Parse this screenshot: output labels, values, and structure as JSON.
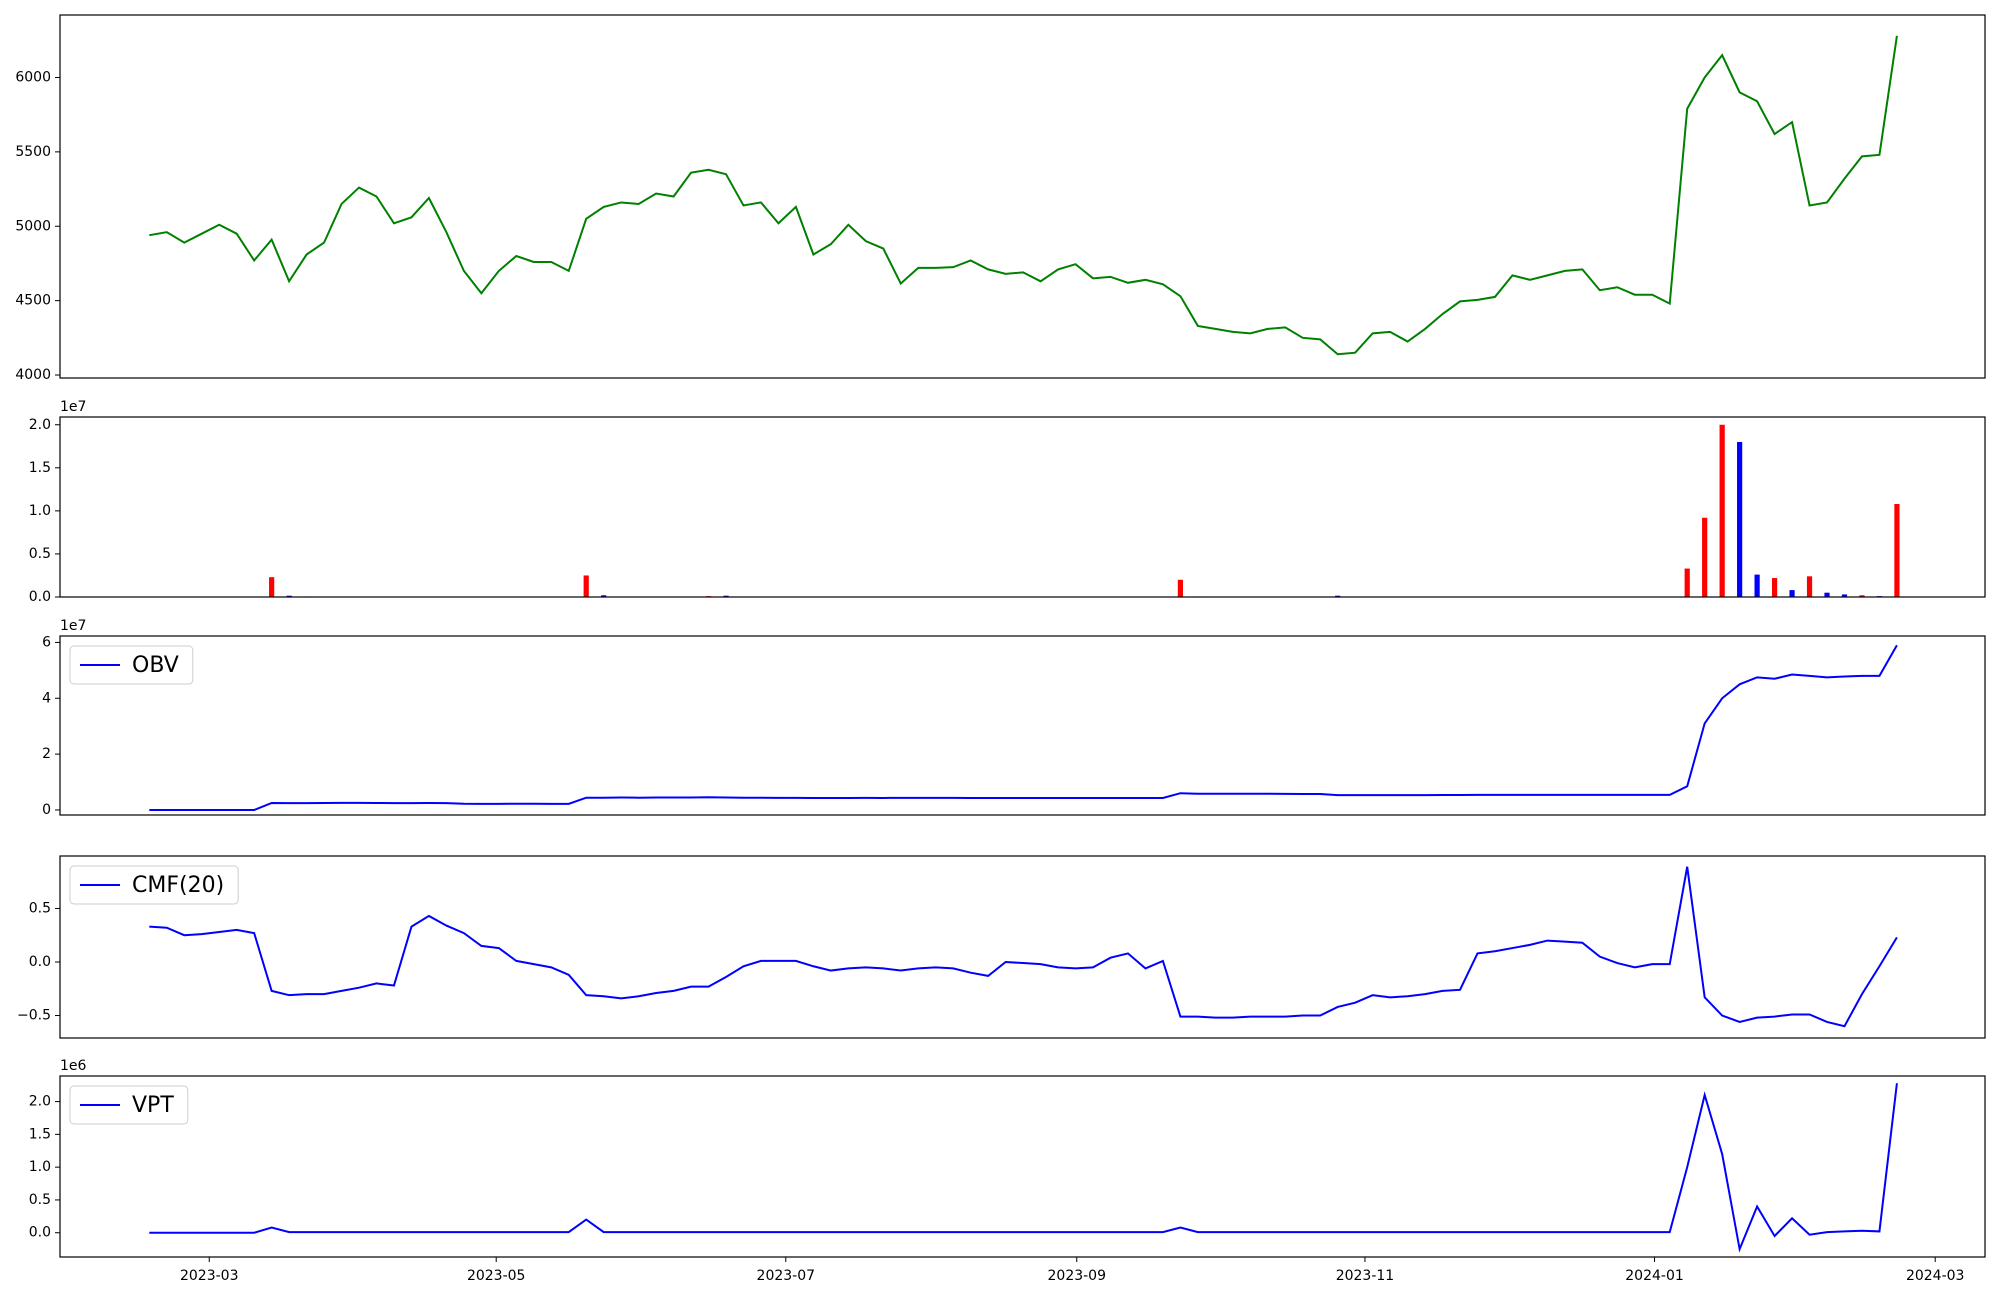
{
  "chart_data": [
    {
      "type": "line",
      "color": "#008000",
      "xlim": [
        -5.11,
        105.04
      ],
      "ylim": [
        3980,
        6420
      ],
      "yticks": [
        4000,
        4500,
        5000,
        5500,
        6000
      ],
      "values": [
        4940,
        4960,
        4890,
        4950,
        5010,
        4950,
        4770,
        4910,
        4630,
        4810,
        4890,
        5150,
        5260,
        5200,
        5020,
        5060,
        5190,
        4960,
        4700,
        4550,
        4700,
        4800,
        4760,
        4760,
        4700,
        5050,
        5130,
        5160,
        5150,
        5220,
        5200,
        5360,
        5380,
        5350,
        5140,
        5160,
        5020,
        5130,
        4810,
        4880,
        5010,
        4900,
        4850,
        4615,
        4720,
        4720,
        4725,
        4770,
        4710,
        4680,
        4690,
        4630,
        4710,
        4745,
        4650,
        4660,
        4620,
        4640,
        4610,
        4530,
        4330,
        4310,
        4290,
        4280,
        4310,
        4320,
        4250,
        4240,
        4140,
        4150,
        4280,
        4290,
        4225,
        4310,
        4410,
        4495,
        4505,
        4525,
        4670,
        4640,
        4670,
        4700,
        4710,
        4570,
        4590,
        4540,
        4540,
        4480,
        5790,
        6000,
        6150,
        5900,
        5840,
        5620,
        5700,
        5140,
        5160,
        5320,
        5470,
        5480,
        6280
      ]
    },
    {
      "type": "bar",
      "offset_label": "1e7",
      "xlim": [
        -5.11,
        105.04
      ],
      "ylim": [
        0,
        20900000
      ],
      "yticks": [
        {
          "value": 0,
          "label": "0.0"
        },
        {
          "value": 5000000,
          "label": "0.5"
        },
        {
          "value": 10000000,
          "label": "1.0"
        },
        {
          "value": 15000000,
          "label": "1.5"
        },
        {
          "value": 20000000,
          "label": "2.0"
        }
      ],
      "values": [
        0,
        0,
        0,
        0,
        0,
        0,
        0,
        2300000,
        150000,
        60000,
        0,
        0,
        0,
        0,
        40000,
        0,
        0,
        0,
        0,
        0,
        50000,
        0,
        0,
        0,
        0,
        2500000,
        200000,
        0,
        0,
        0,
        0,
        0,
        100000,
        150000,
        0,
        0,
        0,
        0,
        0,
        0,
        0,
        0,
        0,
        0,
        0,
        0,
        0,
        0,
        0,
        0,
        0,
        0,
        0,
        0,
        0,
        0,
        0,
        0,
        0,
        2000000,
        60000,
        50000,
        0,
        0,
        0,
        0,
        0,
        0,
        150000,
        0,
        0,
        0,
        0,
        0,
        0,
        0,
        0,
        0,
        0,
        0,
        0,
        0,
        0,
        0,
        0,
        0,
        0,
        0,
        3300000,
        9200000,
        20000000,
        18000000,
        2600000,
        2200000,
        800000,
        2400000,
        500000,
        300000,
        200000,
        100000,
        10800000
      ],
      "colors": [
        "#0000ff",
        "#0000ff",
        "#0000ff",
        "#0000ff",
        "#0000ff",
        "#0000ff",
        "#0000ff",
        "#ff0000",
        "#0000ff",
        "#0000ff",
        "#0000ff",
        "#0000ff",
        "#0000ff",
        "#0000ff",
        "#0000ff",
        "#0000ff",
        "#0000ff",
        "#0000ff",
        "#0000ff",
        "#0000ff",
        "#0000ff",
        "#0000ff",
        "#0000ff",
        "#0000ff",
        "#0000ff",
        "#ff0000",
        "#0000ff",
        "#0000ff",
        "#0000ff",
        "#0000ff",
        "#0000ff",
        "#0000ff",
        "#ff0000",
        "#0000ff",
        "#0000ff",
        "#0000ff",
        "#0000ff",
        "#0000ff",
        "#0000ff",
        "#0000ff",
        "#0000ff",
        "#0000ff",
        "#0000ff",
        "#0000ff",
        "#0000ff",
        "#0000ff",
        "#0000ff",
        "#0000ff",
        "#0000ff",
        "#0000ff",
        "#0000ff",
        "#0000ff",
        "#0000ff",
        "#0000ff",
        "#0000ff",
        "#0000ff",
        "#0000ff",
        "#0000ff",
        "#0000ff",
        "#ff0000",
        "#0000ff",
        "#0000ff",
        "#0000ff",
        "#0000ff",
        "#0000ff",
        "#0000ff",
        "#0000ff",
        "#0000ff",
        "#0000ff",
        "#0000ff",
        "#0000ff",
        "#0000ff",
        "#0000ff",
        "#0000ff",
        "#0000ff",
        "#0000ff",
        "#0000ff",
        "#0000ff",
        "#0000ff",
        "#0000ff",
        "#0000ff",
        "#0000ff",
        "#0000ff",
        "#0000ff",
        "#0000ff",
        "#0000ff",
        "#0000ff",
        "#0000ff",
        "#ff0000",
        "#ff0000",
        "#ff0000",
        "#0000ff",
        "#0000ff",
        "#ff0000",
        "#0000ff",
        "#ff0000",
        "#0000ff",
        "#0000ff",
        "#ff0000",
        "#0000ff",
        "#ff0000"
      ]
    },
    {
      "type": "line",
      "offset_label": "1e7",
      "xlim": [
        -5.11,
        105.04
      ],
      "ylim": [
        -1800000,
        62300000
      ],
      "yticks": [
        {
          "value": 0,
          "label": "0"
        },
        {
          "value": 20000000,
          "label": "2"
        },
        {
          "value": 40000000,
          "label": "4"
        },
        {
          "value": 60000000,
          "label": "6"
        }
      ],
      "series": [
        {
          "name": "OBV",
          "color": "#0000ff",
          "values": [
            0,
            0,
            0,
            0,
            0,
            0,
            0,
            2500000,
            2450000,
            2450000,
            2500000,
            2550000,
            2550000,
            2500000,
            2450000,
            2450000,
            2500000,
            2450000,
            2250000,
            2200000,
            2200000,
            2250000,
            2250000,
            2200000,
            2200000,
            4400000,
            4400000,
            4450000,
            4400000,
            4450000,
            4450000,
            4450000,
            4550000,
            4450000,
            4400000,
            4400000,
            4350000,
            4350000,
            4300000,
            4300000,
            4300000,
            4350000,
            4300000,
            4350000,
            4350000,
            4350000,
            4350000,
            4300000,
            4300000,
            4300000,
            4300000,
            4300000,
            4300000,
            4300000,
            4300000,
            4300000,
            4300000,
            4300000,
            4300000,
            6000000,
            5800000,
            5800000,
            5800000,
            5800000,
            5800000,
            5750000,
            5700000,
            5700000,
            5300000,
            5300000,
            5300000,
            5300000,
            5300000,
            5300000,
            5350000,
            5350000,
            5400000,
            5400000,
            5400000,
            5400000,
            5400000,
            5400000,
            5400000,
            5400000,
            5400000,
            5400000,
            5400000,
            5400000,
            8500000,
            31000000,
            40000000,
            45000000,
            47500000,
            47000000,
            48500000,
            48000000,
            47500000,
            47800000,
            48000000,
            48000000,
            59000000
          ]
        }
      ]
    },
    {
      "type": "line",
      "xlim": [
        -5.11,
        105.04
      ],
      "ylim": [
        -0.71,
        0.99
      ],
      "yticks": [
        {
          "value": -0.5,
          "label": "−0.5"
        },
        {
          "value": 0,
          "label": "0.0"
        },
        0.5
      ],
      "series": [
        {
          "name": "CMF(20)",
          "color": "#0000ff",
          "values": [
            0.33,
            0.32,
            0.25,
            0.26,
            0.28,
            0.3,
            0.27,
            -0.27,
            -0.31,
            -0.3,
            -0.3,
            -0.27,
            -0.24,
            -0.2,
            -0.22,
            0.33,
            0.43,
            0.34,
            0.27,
            0.15,
            0.13,
            0.01,
            -0.02,
            -0.05,
            -0.12,
            -0.31,
            -0.32,
            -0.34,
            -0.32,
            -0.29,
            -0.27,
            -0.23,
            -0.23,
            -0.14,
            -0.04,
            0.01,
            0.01,
            0.01,
            -0.04,
            -0.08,
            -0.06,
            -0.05,
            -0.06,
            -0.08,
            -0.06,
            -0.05,
            -0.06,
            -0.1,
            -0.13,
            0.0,
            -0.01,
            -0.02,
            -0.05,
            -0.06,
            -0.05,
            0.04,
            0.08,
            -0.06,
            0.01,
            -0.51,
            -0.51,
            -0.52,
            -0.52,
            -0.51,
            -0.51,
            -0.51,
            -0.5,
            -0.5,
            -0.42,
            -0.38,
            -0.31,
            -0.33,
            -0.32,
            -0.3,
            -0.27,
            -0.26,
            0.08,
            0.1,
            0.13,
            0.16,
            0.2,
            0.19,
            0.18,
            0.05,
            -0.01,
            -0.05,
            -0.02,
            -0.02,
            0.89,
            -0.33,
            -0.5,
            -0.56,
            -0.52,
            -0.51,
            -0.49,
            -0.49,
            -0.56,
            -0.6,
            -0.3,
            -0.04,
            0.23
          ]
        }
      ]
    },
    {
      "type": "line",
      "offset_label": "1e6",
      "xlim": [
        -5.11,
        105.04
      ],
      "ylim": [
        -370000,
        2390000
      ],
      "yticks": [
        {
          "value": 0,
          "label": "0.0"
        },
        {
          "value": 500000,
          "label": "0.5"
        },
        {
          "value": 1000000,
          "label": "1.0"
        },
        {
          "value": 1500000,
          "label": "1.5"
        },
        {
          "value": 2000000,
          "label": "2.0"
        }
      ],
      "xticks": [
        {
          "value": 3.43,
          "label": "2023-03"
        },
        {
          "value": 19.85,
          "label": "2023-05"
        },
        {
          "value": 36.42,
          "label": "2023-07"
        },
        {
          "value": 53.07,
          "label": "2023-09"
        },
        {
          "value": 69.56,
          "label": "2023-11"
        },
        {
          "value": 86.13,
          "label": "2024-01"
        },
        {
          "value": 102.19,
          "label": "2024-03"
        }
      ],
      "series": [
        {
          "name": "VPT",
          "color": "#0000ff",
          "values": [
            0,
            0,
            0,
            0,
            0,
            0,
            0,
            80000,
            10000,
            10000,
            10000,
            10000,
            10000,
            10000,
            10000,
            10000,
            10000,
            10000,
            10000,
            10000,
            10000,
            10000,
            10000,
            10000,
            10000,
            200000,
            10000,
            10000,
            10000,
            10000,
            10000,
            10000,
            10000,
            10000,
            10000,
            10000,
            10000,
            10000,
            10000,
            10000,
            10000,
            10000,
            10000,
            10000,
            10000,
            10000,
            10000,
            10000,
            10000,
            10000,
            10000,
            10000,
            10000,
            10000,
            10000,
            10000,
            10000,
            10000,
            10000,
            80000,
            10000,
            10000,
            10000,
            10000,
            10000,
            10000,
            10000,
            10000,
            10000,
            10000,
            10000,
            10000,
            10000,
            10000,
            10000,
            10000,
            10000,
            10000,
            10000,
            10000,
            10000,
            10000,
            10000,
            10000,
            10000,
            10000,
            10000,
            10000,
            1000000,
            2100000,
            1200000,
            -250000,
            400000,
            -50000,
            220000,
            -30000,
            10000,
            20000,
            30000,
            20000,
            2280000
          ]
        }
      ]
    }
  ]
}
